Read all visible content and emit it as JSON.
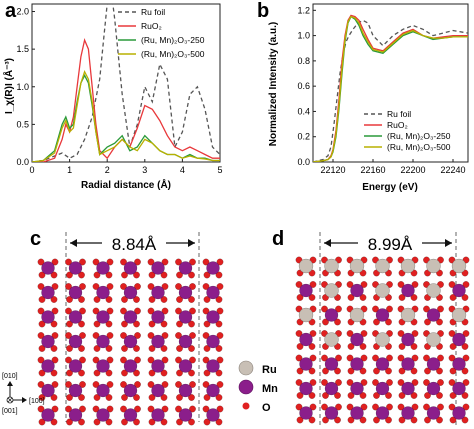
{
  "panels": {
    "a": "a",
    "b": "b",
    "c": "c",
    "d": "d"
  },
  "chart_data": [
    {
      "type": "line",
      "panel": "a",
      "xlabel": "Radial distance (Å)",
      "ylabel": "I_χ(R)I (Å⁻³)",
      "xlim": [
        0,
        5
      ],
      "ylim": [
        0,
        2.1
      ],
      "xticks": [
        "0",
        "1",
        "2",
        "3",
        "4",
        "5"
      ],
      "yticks": [
        "0.0",
        "0.5",
        "1.0",
        "1.5",
        "2.0"
      ],
      "legend_position": "top-right",
      "series": [
        {
          "name": "Ru foil",
          "color": "#555555",
          "dash": true,
          "x": [
            0.0,
            0.3,
            0.6,
            0.8,
            1.0,
            1.2,
            1.4,
            1.6,
            1.8,
            1.9,
            2.0,
            2.1,
            2.2,
            2.4,
            2.6,
            2.8,
            3.0,
            3.2,
            3.4,
            3.6,
            3.8,
            4.0,
            4.2,
            4.4,
            4.6,
            4.8,
            5.0
          ],
          "y": [
            0.0,
            0.02,
            0.08,
            0.12,
            0.05,
            0.1,
            0.3,
            0.6,
            1.1,
            1.6,
            2.1,
            2.3,
            1.9,
            0.9,
            0.2,
            0.5,
            1.0,
            0.8,
            1.3,
            1.1,
            0.2,
            0.4,
            0.9,
            1.0,
            0.7,
            0.2,
            0.1
          ]
        },
        {
          "name": "RuO₂",
          "color": "#e8383b",
          "dash": false,
          "x": [
            0.0,
            0.3,
            0.6,
            0.8,
            0.9,
            1.0,
            1.1,
            1.2,
            1.3,
            1.4,
            1.5,
            1.6,
            1.7,
            1.8,
            2.0,
            2.2,
            2.4,
            2.6,
            2.8,
            3.0,
            3.2,
            3.4,
            3.6,
            3.8,
            4.0,
            4.2,
            4.4,
            4.6,
            4.8,
            5.0
          ],
          "y": [
            0.0,
            0.0,
            0.05,
            0.3,
            0.5,
            0.4,
            0.6,
            1.0,
            1.4,
            1.62,
            1.5,
            1.0,
            0.5,
            0.15,
            0.05,
            0.2,
            0.3,
            0.2,
            0.45,
            0.75,
            0.7,
            0.55,
            0.35,
            0.2,
            0.15,
            0.2,
            0.15,
            0.1,
            0.05,
            0.05
          ]
        },
        {
          "name": "(Ru, Mn)₂O₃-250",
          "color": "#2a9a3a",
          "dash": false,
          "x": [
            0.0,
            0.3,
            0.6,
            0.8,
            0.9,
            1.0,
            1.1,
            1.2,
            1.3,
            1.4,
            1.5,
            1.6,
            1.7,
            1.8,
            2.0,
            2.2,
            2.4,
            2.6,
            2.8,
            3.0,
            3.2,
            3.4,
            3.6,
            3.8,
            4.0,
            4.2,
            4.4,
            4.6,
            4.8,
            5.0
          ],
          "y": [
            0.0,
            0.02,
            0.15,
            0.5,
            0.6,
            0.45,
            0.5,
            0.8,
            1.05,
            1.15,
            1.05,
            0.75,
            0.4,
            0.1,
            0.2,
            0.25,
            0.35,
            0.15,
            0.2,
            0.35,
            0.25,
            0.15,
            0.1,
            0.1,
            0.05,
            0.1,
            0.05,
            0.05,
            0.02,
            0.02
          ]
        },
        {
          "name": "(Ru, Mn)₂O₃-500",
          "color": "#b9b000",
          "dash": false,
          "x": [
            0.0,
            0.3,
            0.6,
            0.8,
            0.9,
            1.0,
            1.1,
            1.2,
            1.3,
            1.4,
            1.5,
            1.6,
            1.7,
            1.8,
            2.0,
            2.2,
            2.4,
            2.6,
            2.8,
            3.0,
            3.2,
            3.4,
            3.6,
            3.8,
            4.0,
            4.2,
            4.4,
            4.6,
            4.8,
            5.0
          ],
          "y": [
            0.0,
            0.02,
            0.12,
            0.45,
            0.55,
            0.4,
            0.45,
            0.75,
            1.05,
            1.2,
            1.1,
            0.8,
            0.4,
            0.1,
            0.15,
            0.2,
            0.3,
            0.2,
            0.15,
            0.3,
            0.25,
            0.15,
            0.1,
            0.1,
            0.05,
            0.08,
            0.05,
            0.04,
            0.02,
            0.02
          ]
        }
      ]
    },
    {
      "type": "line",
      "panel": "b",
      "xlabel": "Energy (eV)",
      "ylabel": "Normalized Intensity (a.u.)",
      "xlim": [
        22100,
        22255
      ],
      "ylim": [
        0,
        1.25
      ],
      "xticks": [
        "22120",
        "22160",
        "22200",
        "22240"
      ],
      "yticks": [
        "0.0",
        "0.2",
        "0.4",
        "0.6",
        "0.8",
        "1.0",
        "1.2"
      ],
      "legend_position": "bottom-right",
      "series": [
        {
          "name": "Ru foil",
          "color": "#555555",
          "dash": true,
          "x": [
            22100,
            22110,
            22115,
            22118,
            22121,
            22124,
            22127,
            22130,
            22133,
            22136,
            22140,
            22145,
            22150,
            22155,
            22160,
            22170,
            22180,
            22190,
            22200,
            22210,
            22220,
            22230,
            22240,
            22255
          ],
          "y": [
            0.0,
            0.02,
            0.05,
            0.12,
            0.3,
            0.5,
            0.7,
            0.85,
            0.95,
            1.0,
            1.05,
            1.1,
            1.12,
            1.1,
            1.0,
            0.92,
            1.0,
            1.05,
            1.08,
            1.05,
            1.0,
            1.02,
            1.04,
            1.02
          ]
        },
        {
          "name": "RuO₂",
          "color": "#e8383b",
          "dash": false,
          "x": [
            22100,
            22110,
            22115,
            22118,
            22120,
            22123,
            22126,
            22129,
            22132,
            22135,
            22138,
            22142,
            22146,
            22150,
            22155,
            22160,
            22170,
            22180,
            22190,
            22200,
            22210,
            22220,
            22230,
            22240,
            22255
          ],
          "y": [
            0.0,
            0.01,
            0.02,
            0.05,
            0.1,
            0.25,
            0.5,
            0.8,
            1.0,
            1.12,
            1.16,
            1.15,
            1.12,
            1.05,
            0.97,
            0.9,
            0.88,
            0.95,
            1.02,
            1.05,
            1.0,
            0.98,
            0.99,
            1.0,
            1.0
          ]
        },
        {
          "name": "(Ru, Mn)₂O₃-250",
          "color": "#2a9a3a",
          "dash": false,
          "x": [
            22100,
            22110,
            22115,
            22118,
            22120,
            22123,
            22126,
            22129,
            22132,
            22135,
            22138,
            22142,
            22146,
            22150,
            22155,
            22160,
            22170,
            22180,
            22190,
            22200,
            22210,
            22220,
            22230,
            22240,
            22255
          ],
          "y": [
            0.0,
            0.01,
            0.02,
            0.04,
            0.08,
            0.2,
            0.42,
            0.7,
            0.95,
            1.1,
            1.15,
            1.13,
            1.08,
            1.0,
            0.93,
            0.88,
            0.86,
            0.93,
            1.0,
            1.03,
            1.0,
            0.97,
            0.98,
            0.99,
            0.99
          ]
        },
        {
          "name": "(Ru, Mn)₂O₃-500",
          "color": "#b9b000",
          "dash": false,
          "x": [
            22100,
            22110,
            22115,
            22118,
            22120,
            22123,
            22126,
            22129,
            22132,
            22135,
            22138,
            22142,
            22146,
            22150,
            22155,
            22160,
            22170,
            22180,
            22190,
            22200,
            22210,
            22220,
            22230,
            22240,
            22255
          ],
          "y": [
            0.0,
            0.01,
            0.02,
            0.04,
            0.09,
            0.22,
            0.45,
            0.74,
            0.97,
            1.11,
            1.15,
            1.14,
            1.1,
            1.02,
            0.95,
            0.89,
            0.87,
            0.94,
            1.01,
            1.04,
            1.0,
            0.98,
            0.98,
            0.99,
            0.99
          ]
        }
      ]
    }
  ],
  "structures": {
    "c_dimension": "8.84Å",
    "d_dimension": "8.99Å",
    "legend": {
      "ru": "Ru",
      "mn": "Mn",
      "o": "O"
    },
    "colors": {
      "ru": "#c8bfb5",
      "mn": "#8b1e8b",
      "o": "#e02020"
    },
    "axes": {
      "a010": "[010]",
      "a001": "[001]",
      "a100": "[100]"
    }
  }
}
